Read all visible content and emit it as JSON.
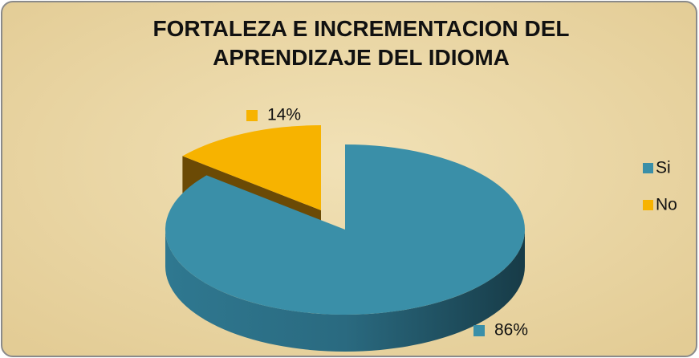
{
  "chart_data": {
    "type": "pie3d",
    "title": "FORTALEZA E INCREMENTACION DEL APRENDIZAJE DEL IDIOMA",
    "categories": [
      "Si",
      "No"
    ],
    "values": [
      86,
      14
    ],
    "value_labels": [
      "86%",
      "14%"
    ],
    "colors": [
      "#3a8fa8",
      "#f7b300"
    ],
    "legend": "right"
  }
}
